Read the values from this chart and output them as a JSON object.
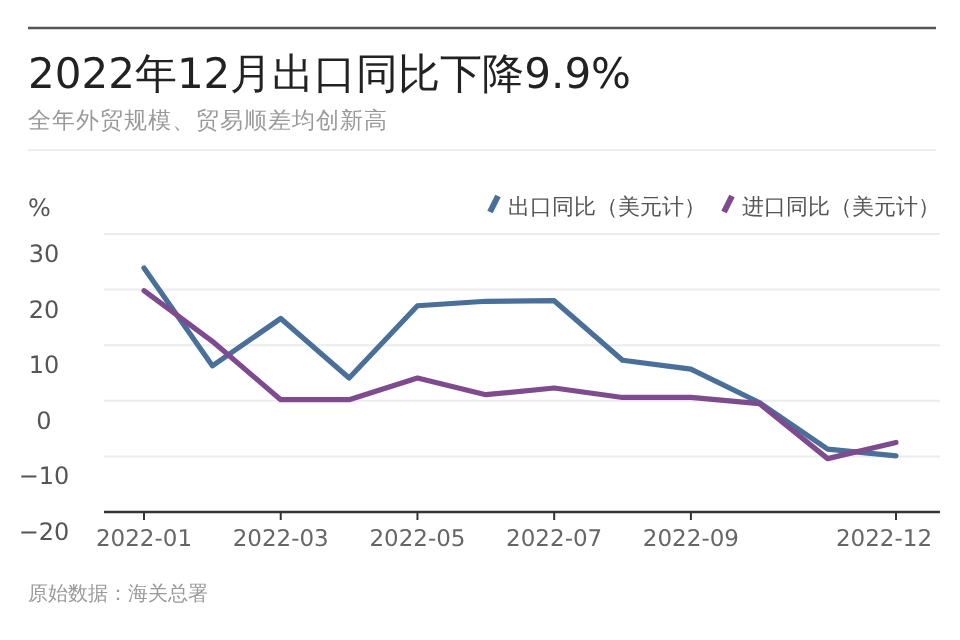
{
  "chart_data": {
    "type": "line",
    "title": "2022年12月出口同比下降9.9%",
    "subtitle": "全年外贸规模、贸易顺差均创新高",
    "ylabel": "%",
    "categories": [
      "2022-01",
      null,
      "2022-03",
      null,
      "2022-05",
      null,
      "2022-07",
      null,
      "2022-09",
      null,
      null,
      "2022-12"
    ],
    "series": [
      {
        "name": "出口同比（美元计）",
        "color": "#4a6f98",
        "values": [
          23.9,
          6.3,
          14.8,
          4.1,
          17.1,
          17.9,
          18,
          7.3,
          5.7,
          -0.3,
          -8.7,
          -9.9
        ]
      },
      {
        "name": "进口同比（美元计）",
        "color": "#7d4b8e",
        "values": [
          19.8,
          10.7,
          0.2,
          0.2,
          4.1,
          1.1,
          2.3,
          0.6,
          0.6,
          -0.5,
          -10.4,
          -7.5
        ]
      }
    ],
    "ylim": [
      -20,
      30
    ],
    "yticks": [
      -20,
      -10,
      0,
      10,
      20,
      30
    ],
    "grid": "y",
    "legend": "top right",
    "line_style": "solid",
    "marker": "none",
    "annotations": [
      "原始数据：海关总署"
    ]
  }
}
